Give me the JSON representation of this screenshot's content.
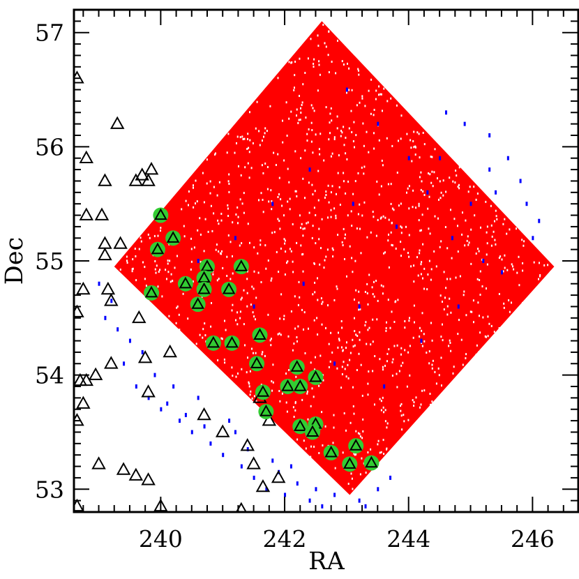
{
  "chart_data": {
    "type": "scatter",
    "xlabel": "RA",
    "ylabel": "Dec",
    "xlim": [
      238.6,
      246.75
    ],
    "ylim": [
      52.8,
      57.2
    ],
    "grid": false,
    "x_ticks": [
      240,
      242,
      244,
      246
    ],
    "y_ticks": [
      53,
      54,
      55,
      56,
      57
    ],
    "colors": {
      "footprint": "#ff0000",
      "footprint_specks": "#ffffff",
      "blue_points": "#0000ff",
      "filled_circles": "#33cc33",
      "triangles_stroke": "#000000"
    },
    "footprint_region": {
      "vertices": [
        [
          242.6,
          57.1
        ],
        [
          246.35,
          54.95
        ],
        [
          243.05,
          52.95
        ],
        [
          239.25,
          54.95
        ]
      ]
    },
    "blue_points": [
      [
        244.6,
        56.3
      ],
      [
        244.9,
        56.2
      ],
      [
        245.3,
        56.1
      ],
      [
        245.6,
        55.9
      ],
      [
        245.8,
        55.7
      ],
      [
        245.4,
        55.6
      ],
      [
        245.9,
        55.5
      ],
      [
        246.1,
        55.35
      ],
      [
        246.0,
        55.2
      ],
      [
        245.3,
        55.8
      ],
      [
        244.5,
        55.9
      ],
      [
        245.0,
        55.5
      ],
      [
        239.0,
        54.8
      ],
      [
        239.1,
        54.5
      ],
      [
        239.3,
        54.4
      ],
      [
        239.5,
        54.3
      ],
      [
        239.7,
        54.2
      ],
      [
        239.6,
        53.9
      ],
      [
        239.8,
        53.8
      ],
      [
        240.0,
        53.7
      ],
      [
        240.2,
        53.9
      ],
      [
        240.3,
        53.6
      ],
      [
        240.5,
        53.5
      ],
      [
        240.6,
        53.8
      ],
      [
        240.8,
        53.4
      ],
      [
        241.0,
        53.3
      ],
      [
        241.2,
        53.5
      ],
      [
        241.3,
        53.2
      ],
      [
        241.5,
        53.1
      ],
      [
        241.7,
        53.0
      ],
      [
        241.9,
        53.15
      ],
      [
        242.0,
        52.95
      ],
      [
        242.2,
        53.05
      ],
      [
        242.4,
        52.9
      ],
      [
        242.6,
        52.85
      ],
      [
        242.8,
        52.95
      ],
      [
        243.2,
        52.9
      ],
      [
        243.5,
        53.0
      ],
      [
        243.7,
        53.1
      ],
      [
        239.2,
        54.65
      ],
      [
        239.4,
        54.1
      ],
      [
        239.9,
        54.0
      ],
      [
        240.1,
        53.75
      ],
      [
        240.4,
        53.65
      ],
      [
        240.7,
        53.55
      ],
      [
        241.1,
        53.6
      ],
      [
        241.4,
        53.35
      ],
      [
        241.8,
        53.25
      ],
      [
        242.1,
        53.2
      ],
      [
        242.5,
        53.0
      ],
      [
        243.3,
        52.85
      ],
      [
        243.0,
        56.5
      ],
      [
        243.5,
        56.2
      ],
      [
        244.0,
        55.9
      ],
      [
        244.3,
        55.6
      ],
      [
        243.8,
        55.3
      ],
      [
        244.7,
        55.2
      ],
      [
        245.2,
        55.0
      ],
      [
        243.2,
        54.6
      ],
      [
        242.8,
        54.1
      ],
      [
        244.2,
        54.3
      ],
      [
        243.6,
        53.9
      ],
      [
        242.4,
        55.8
      ],
      [
        241.8,
        55.5
      ],
      [
        241.2,
        55.2
      ],
      [
        240.6,
        55.0
      ],
      [
        241.5,
        54.6
      ],
      [
        242.3,
        54.8
      ],
      [
        243.1,
        55.5
      ],
      [
        244.8,
        54.6
      ],
      [
        245.5,
        54.9
      ]
    ],
    "green_circle_points": [
      [
        240.0,
        55.4
      ],
      [
        240.2,
        55.2
      ],
      [
        239.95,
        55.1
      ],
      [
        240.75,
        54.95
      ],
      [
        241.3,
        54.95
      ],
      [
        240.7,
        54.85
      ],
      [
        240.4,
        54.8
      ],
      [
        240.7,
        54.75
      ],
      [
        241.1,
        54.75
      ],
      [
        239.85,
        54.72
      ],
      [
        240.6,
        54.62
      ],
      [
        241.6,
        54.35
      ],
      [
        240.85,
        54.28
      ],
      [
        241.15,
        54.28
      ],
      [
        241.55,
        54.1
      ],
      [
        242.2,
        54.07
      ],
      [
        242.5,
        53.98
      ],
      [
        242.05,
        53.9
      ],
      [
        242.25,
        53.9
      ],
      [
        241.65,
        53.85
      ],
      [
        241.7,
        53.68
      ],
      [
        242.25,
        53.55
      ],
      [
        242.5,
        53.57
      ],
      [
        242.45,
        53.5
      ],
      [
        242.75,
        53.32
      ],
      [
        243.15,
        53.38
      ],
      [
        243.05,
        53.22
      ],
      [
        243.4,
        53.23
      ]
    ],
    "triangle_points": [
      [
        238.65,
        56.6
      ],
      [
        239.3,
        56.2
      ],
      [
        238.8,
        55.9
      ],
      [
        239.1,
        55.7
      ],
      [
        239.6,
        55.7
      ],
      [
        239.7,
        55.75
      ],
      [
        239.8,
        55.7
      ],
      [
        239.85,
        55.8
      ],
      [
        238.8,
        55.4
      ],
      [
        239.05,
        55.4
      ],
      [
        239.1,
        55.15
      ],
      [
        239.35,
        55.15
      ],
      [
        239.1,
        55.05
      ],
      [
        238.75,
        54.75
      ],
      [
        239.15,
        54.75
      ],
      [
        239.2,
        54.65
      ],
      [
        238.65,
        54.55
      ],
      [
        239.65,
        54.5
      ],
      [
        239.75,
        54.15
      ],
      [
        240.15,
        54.2
      ],
      [
        239.2,
        54.1
      ],
      [
        238.7,
        53.95
      ],
      [
        238.8,
        53.95
      ],
      [
        238.95,
        54.0
      ],
      [
        239.8,
        53.85
      ],
      [
        238.75,
        53.75
      ],
      [
        238.65,
        53.6
      ],
      [
        240.7,
        53.65
      ],
      [
        241.0,
        53.5
      ],
      [
        241.6,
        53.8
      ],
      [
        241.75,
        53.6
      ],
      [
        241.4,
        53.38
      ],
      [
        241.5,
        53.22
      ],
      [
        241.65,
        53.02
      ],
      [
        241.9,
        53.1
      ],
      [
        239.0,
        53.22
      ],
      [
        239.4,
        53.17
      ],
      [
        239.6,
        53.12
      ],
      [
        239.8,
        53.08
      ],
      [
        238.65,
        52.85
      ],
      [
        240.0,
        52.85
      ],
      [
        241.3,
        52.82
      ]
    ]
  }
}
